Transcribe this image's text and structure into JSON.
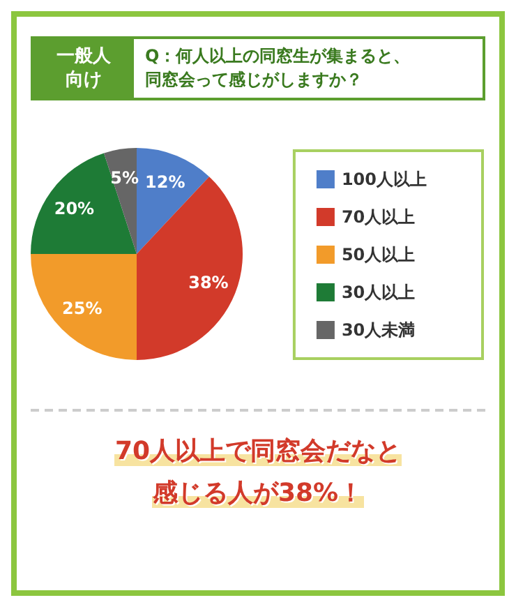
{
  "chart_data": {
    "type": "pie",
    "title": "Q：何人以上の同窓生が集まると、同窓会って感じがしますか？",
    "subtitle": "一般人向け",
    "categories": [
      "100人以上",
      "70人以上",
      "50人以上",
      "30人以上",
      "30人未満"
    ],
    "values": [
      12,
      38,
      25,
      20,
      5
    ],
    "value_labels": [
      "12%",
      "38%",
      "25%",
      "20%",
      "5%"
    ],
    "colors": [
      "#4f7ec9",
      "#d23a2a",
      "#f29b2a",
      "#1e7b36",
      "#666666"
    ],
    "legend": "right",
    "annotations": [
      "70人以上で同窓会だなと感じる人が38%！"
    ]
  }
}
